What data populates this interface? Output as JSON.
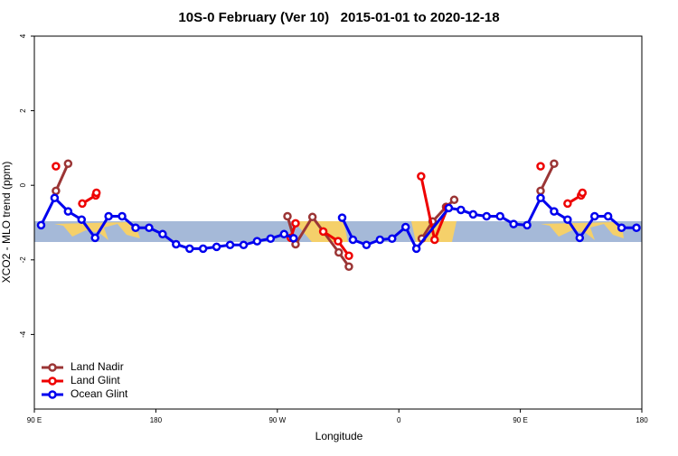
{
  "chart_data": {
    "type": "line",
    "title": "10S-0 February (Ver 10)   2015-01-01 to 2020-12-18",
    "x_label": "Longitude",
    "y_label": "XCO2 - MLO trend (ppm)",
    "xlim": [
      90,
      540
    ],
    "xticks": [
      {
        "value": 90,
        "label": "90 E"
      },
      {
        "value": 180,
        "label": "180"
      },
      {
        "value": 270,
        "label": "90 W"
      },
      {
        "value": 360,
        "label": "0"
      },
      {
        "value": 450,
        "label": "90 E"
      },
      {
        "value": 540,
        "label": "180"
      }
    ],
    "ylim": [
      -6,
      4
    ],
    "yticks": [
      -4,
      -2,
      0,
      2,
      4
    ],
    "legend": "bottom-left",
    "series": [
      {
        "name": "Land Nadir",
        "color": "#9b3535",
        "x": [
          106,
          115,
          null,
          277.5,
          283.5,
          296,
          315.5,
          323,
          null,
          377,
          385,
          395,
          401,
          null,
          465,
          475
        ],
        "values": [
          -0.15,
          0.58,
          null,
          -0.83,
          -1.58,
          -0.85,
          -1.8,
          -2.18,
          null,
          -1.43,
          -0.97,
          -0.58,
          -0.39,
          null,
          -0.15,
          0.58
        ]
      },
      {
        "name": "Land Glint",
        "color": "#ee0000",
        "x": [
          106,
          null,
          125.5,
          135.5,
          136,
          null,
          280,
          283.5,
          null,
          304,
          315,
          323,
          null,
          376.5,
          386.5,
          396,
          null,
          465,
          null,
          485,
          495,
          496
        ],
        "values": [
          0.51,
          null,
          -0.49,
          -0.27,
          -0.2,
          null,
          -1.41,
          -1.02,
          null,
          -1.24,
          -1.5,
          -1.89,
          null,
          0.24,
          -1.46,
          -0.61,
          null,
          0.51,
          null,
          -0.49,
          -0.27,
          -0.2
        ]
      },
      {
        "name": "Ocean Glint",
        "color": "#0000ee",
        "x": [
          95,
          105,
          115,
          125,
          135,
          145,
          155,
          165,
          175,
          185,
          195,
          205,
          215,
          225,
          235,
          245,
          255,
          265,
          275,
          282,
          null,
          318,
          326,
          336,
          346,
          355,
          365,
          373,
          397,
          406,
          415,
          425,
          435,
          445,
          455,
          465,
          475,
          485,
          494,
          505,
          515,
          525,
          536
        ],
        "values": [
          -1.07,
          -0.34,
          -0.7,
          -0.92,
          -1.41,
          -0.83,
          -0.83,
          -1.14,
          -1.14,
          -1.31,
          -1.58,
          -1.7,
          -1.7,
          -1.65,
          -1.6,
          -1.6,
          -1.5,
          -1.43,
          -1.31,
          -1.42,
          null,
          -0.87,
          -1.46,
          -1.6,
          -1.46,
          -1.43,
          -1.12,
          -1.7,
          -0.61,
          -0.66,
          -0.78,
          -0.83,
          -0.83,
          -1.04,
          -1.07,
          -0.34,
          -0.7,
          -0.92,
          -1.41,
          -0.83,
          -0.83,
          -1.14,
          -1.14
        ]
      }
    ]
  }
}
